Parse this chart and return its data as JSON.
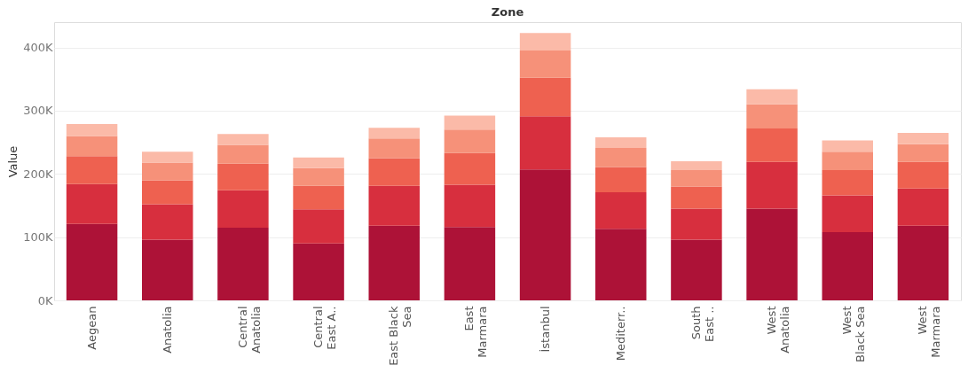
{
  "chart_data": {
    "type": "bar",
    "stacked": true,
    "xlabel": "Zone",
    "ylabel": "Value",
    "categories": [
      "Aegean",
      "Anatolia",
      "Central\nAnatolia",
      "Central\nEast A..",
      "East Black\nSea",
      "East\nMarmara",
      "İstanbul",
      "Mediterr..",
      "South\nEast ..",
      "West\nAnatolia",
      "West\nBlack Sea",
      "West\nMarmara"
    ],
    "series": [
      {
        "color": "#ad1237",
        "values": [
          121000,
          96000,
          115000,
          90000,
          118000,
          116000,
          207000,
          113000,
          96000,
          145000,
          108000,
          118000
        ]
      },
      {
        "color": "#d72f3e",
        "values": [
          63000,
          56000,
          59000,
          54000,
          63000,
          67000,
          84000,
          58000,
          49000,
          74000,
          58000,
          59000
        ]
      },
      {
        "color": "#ee6150",
        "values": [
          44000,
          38000,
          42000,
          37000,
          44000,
          50000,
          61000,
          40000,
          35000,
          53000,
          40000,
          42000
        ]
      },
      {
        "color": "#f69179",
        "values": [
          32000,
          28000,
          30000,
          28000,
          31000,
          37000,
          43000,
          30000,
          26000,
          38000,
          29000,
          28000
        ]
      },
      {
        "color": "#fbbaa8",
        "values": [
          19000,
          17000,
          17000,
          17000,
          17000,
          22000,
          28000,
          17000,
          14000,
          24000,
          18000,
          18000
        ]
      }
    ],
    "ylim": [
      0,
      440000
    ],
    "yticks": [
      {
        "value": 0,
        "label": "0K"
      },
      {
        "value": 100000,
        "label": "100K"
      },
      {
        "value": 200000,
        "label": "200K"
      },
      {
        "value": 300000,
        "label": "300K"
      },
      {
        "value": 400000,
        "label": "400K"
      }
    ],
    "grid": "y",
    "legend": false
  }
}
